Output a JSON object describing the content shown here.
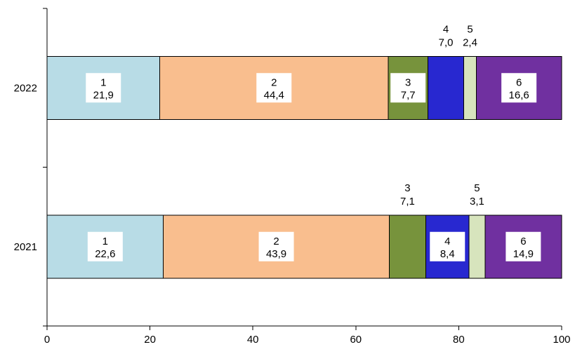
{
  "chart_data": {
    "type": "bar",
    "orientation": "horizontal",
    "stacked": true,
    "categories": [
      "2022",
      "2021"
    ],
    "segment_labels": [
      "1",
      "2",
      "3",
      "4",
      "5",
      "6"
    ],
    "series": [
      {
        "values": [
          21.9,
          22.6
        ],
        "display": [
          "21,9",
          "22,6"
        ],
        "color": "#B8DCE6"
      },
      {
        "values": [
          44.4,
          43.9
        ],
        "display": [
          "44,4",
          "43,9"
        ],
        "color": "#F9BE8E"
      },
      {
        "values": [
          7.7,
          7.1
        ],
        "display": [
          "7,7",
          "7,1"
        ],
        "color": "#77933C"
      },
      {
        "values": [
          7.0,
          8.4
        ],
        "display": [
          "7,0",
          "8,4"
        ],
        "color": "#2828D0"
      },
      {
        "values": [
          2.4,
          3.1
        ],
        "display": [
          "2,4",
          "3,1"
        ],
        "color": "#D7E4BD"
      },
      {
        "values": [
          16.6,
          14.9
        ],
        "display": [
          "16,6",
          "14,9"
        ],
        "color": "#7030A0"
      }
    ],
    "xlim": [
      0,
      100
    ],
    "x_ticks": [
      "0",
      "20",
      "40",
      "60",
      "80",
      "100"
    ],
    "title": "",
    "xlabel": "",
    "ylabel": "",
    "grid": false,
    "legend": "none"
  }
}
